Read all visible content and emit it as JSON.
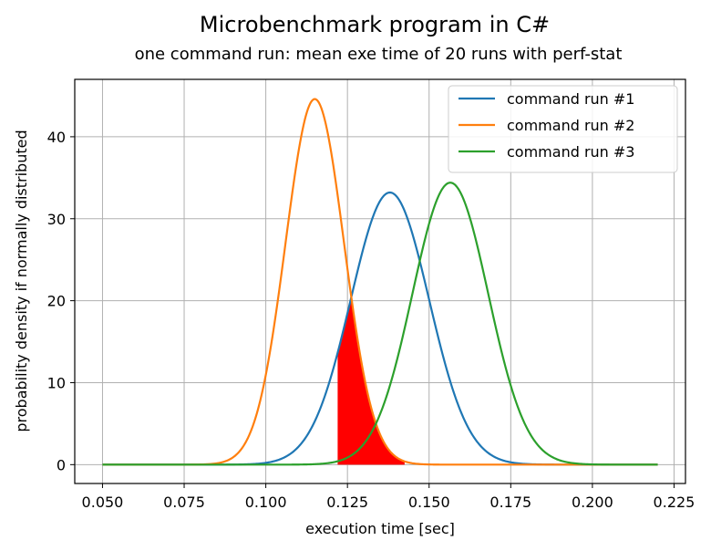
{
  "chart_data": {
    "type": "line",
    "title": "Microbenchmark program in C#",
    "subtitle": "one command run: mean exe time of 20 runs with perf-stat",
    "xlabel": "execution time [sec]",
    "ylabel": "probability density if normally distributed",
    "xlim": [
      0.0415,
      0.2285
    ],
    "ylim": [
      -2.3,
      47.0
    ],
    "xticks": [
      0.05,
      0.075,
      0.1,
      0.125,
      0.15,
      0.175,
      0.2,
      0.225
    ],
    "xtick_labels": [
      "0.050",
      "0.075",
      "0.100",
      "0.125",
      "0.150",
      "0.175",
      "0.200",
      "0.225"
    ],
    "yticks": [
      0,
      10,
      20,
      30,
      40
    ],
    "ytick_labels": [
      "0",
      "10",
      "20",
      "30",
      "40"
    ],
    "grid": true,
    "legend_position": "top-right",
    "x_range": [
      0.05,
      0.22
    ],
    "series": [
      {
        "name": "command run #1",
        "color": "#1f77b4",
        "distribution": "normal",
        "mean": 0.138,
        "std": 0.012,
        "peak_density": 33.2
      },
      {
        "name": "command run #2",
        "color": "#ff7f0e",
        "distribution": "normal",
        "mean": 0.115,
        "std": 0.00895,
        "peak_density": 44.6
      },
      {
        "name": "command run #3",
        "color": "#2ca02c",
        "distribution": "normal",
        "mean": 0.1565,
        "std": 0.0116,
        "peak_density": 34.4
      }
    ],
    "shaded_overlap": {
      "series": [
        "command run #1",
        "command run #2"
      ],
      "color": "#ff0000",
      "x_range": [
        0.122,
        0.1425
      ]
    }
  }
}
